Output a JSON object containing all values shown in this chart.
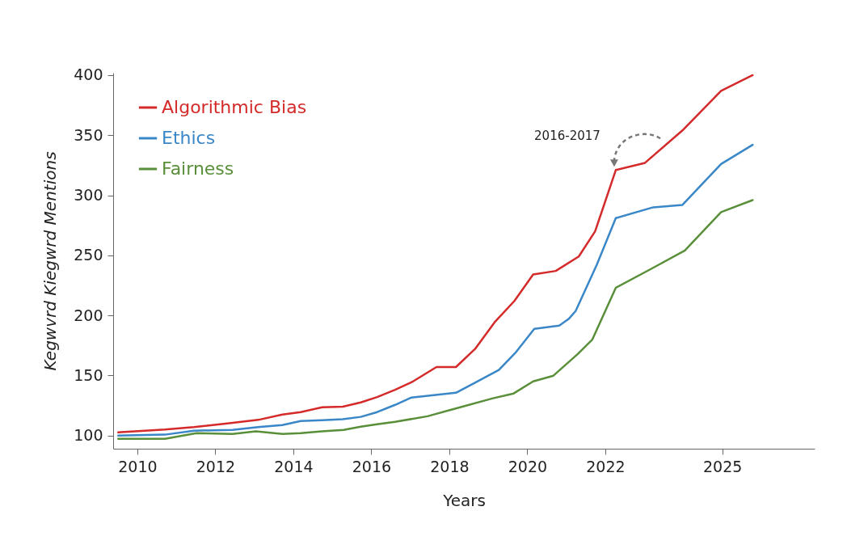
{
  "chart_data": {
    "type": "line",
    "xlabel": "Years",
    "ylabel": "Kegwvrd Kiegwrd Mentions",
    "xlim": [
      2009.38,
      2027.37
    ],
    "xticks": [
      2010,
      2012,
      2014,
      2016,
      2018,
      2020,
      2022,
      2025
    ],
    "ylim": [
      89,
      402
    ],
    "yticks": [
      100,
      150,
      200,
      250,
      300,
      350,
      400
    ],
    "grid": false,
    "legend": "top left",
    "marker": "none",
    "line_style": "solid",
    "annotations": [
      {
        "text": "2016-2017",
        "x": 2022.27,
        "y": 321
      }
    ],
    "series": [
      {
        "name": "Algorithmic Bias",
        "color": "#d42a2a",
        "x": [
          2009.51,
          2010.71,
          2011.45,
          2012.31,
          2013.1,
          2013.72,
          2014.19,
          2014.74,
          2015.27,
          2015.73,
          2016.15,
          2016.61,
          2017.07,
          2017.67,
          2018.17,
          2018.66,
          2019.18,
          2019.67,
          2020.15,
          2020.73,
          2021.32,
          2021.74,
          2022.27,
          2023.02,
          2023.98,
          2024.97,
          2025.78
        ],
        "values": [
          102.7,
          105,
          107,
          110,
          113,
          117.5,
          119.5,
          123.5,
          124,
          127.5,
          132,
          138,
          145,
          157,
          157,
          172,
          195,
          212,
          234,
          237,
          249,
          270,
          321,
          327,
          354,
          387,
          400
        ]
      },
      {
        "name": "Ethics",
        "color": "#3a87c8",
        "x": [
          2009.51,
          2010.71,
          2011.45,
          2012.44,
          2013.1,
          2013.72,
          2014.19,
          2014.74,
          2015.27,
          2015.73,
          2016.15,
          2016.61,
          2017.03,
          2018.17,
          2018.66,
          2019.27,
          2019.69,
          2020.18,
          2020.82,
          2021.06,
          2021.24,
          2021.78,
          2022.27,
          2023.23,
          2023.98,
          2024.97,
          2025.78
        ],
        "values": [
          100,
          100.7,
          104,
          104.7,
          107,
          108.7,
          112,
          112.8,
          113.5,
          115.5,
          119.5,
          125.5,
          131.6,
          135.6,
          144,
          154.5,
          168.6,
          188.8,
          191.5,
          197,
          203.6,
          242,
          281,
          290,
          292,
          326,
          342
        ]
      },
      {
        "name": "Fairness",
        "color": "#5a8f3a",
        "x": [
          2009.51,
          2010.71,
          2011.52,
          2012.44,
          2013.04,
          2013.72,
          2014.19,
          2014.74,
          2015.29,
          2015.73,
          2016.15,
          2016.61,
          2017.44,
          2018.11,
          2019.12,
          2019.65,
          2020.15,
          2020.67,
          2021.3,
          2021.67,
          2022.27,
          2023.17,
          2024.04,
          2024.97,
          2025.78
        ],
        "values": [
          97.3,
          97.3,
          102,
          101.3,
          103.4,
          101.3,
          102,
          103.4,
          104.7,
          107.4,
          109.4,
          111.4,
          116,
          122,
          131,
          135,
          145,
          149.8,
          168,
          180,
          223,
          238.6,
          254,
          286,
          296
        ]
      }
    ]
  }
}
